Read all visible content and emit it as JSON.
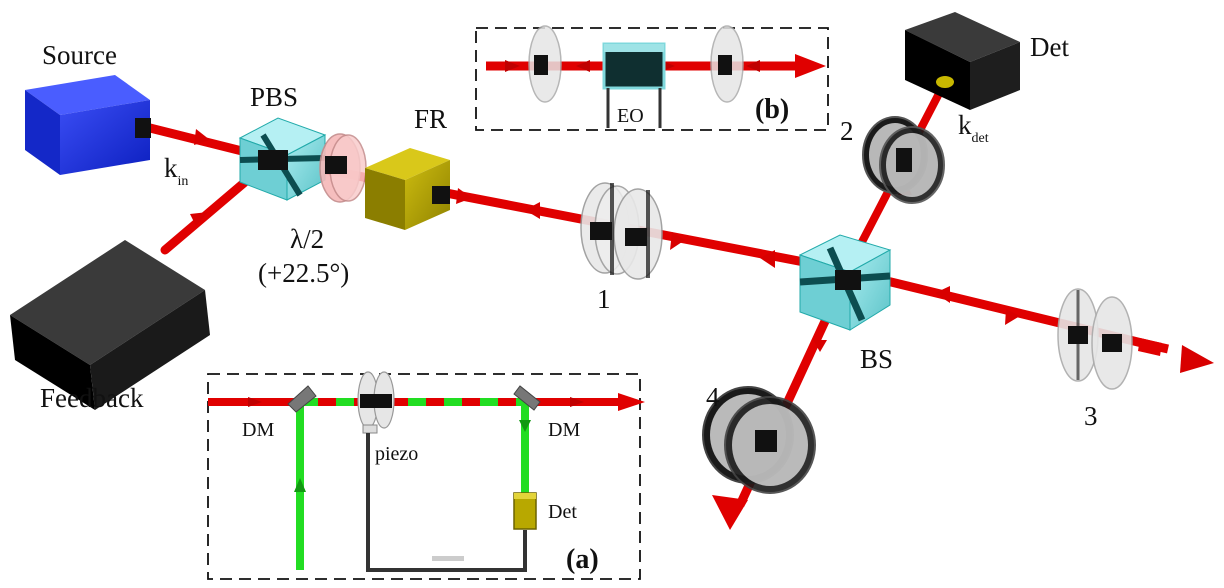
{
  "labels": {
    "source": "Source",
    "feedback": "Feedback",
    "pbs": "PBS",
    "k": "k",
    "k_in_sub": "in",
    "waveplate": "λ/2",
    "waveplate_angle": "(+22.5°)",
    "fr": "FR",
    "port1": "1",
    "port2": "2",
    "port3": "3",
    "port4": "4",
    "bs": "BS",
    "det": "Det",
    "k_det_sub": "det"
  },
  "inset_a": {
    "tag": "(a)",
    "dm_left": "DM",
    "dm_right": "DM",
    "piezo": "piezo",
    "det": "Det"
  },
  "inset_b": {
    "tag": "(b)",
    "eo": "EO"
  },
  "colors": {
    "beam": "#e00000",
    "beam_dark": "#8a0000",
    "green_beam": "#22dd22",
    "source": "#1f35e6",
    "cube": "#7fd8dc",
    "faraday": "#b8a800",
    "waveplate": "#f6b8b8",
    "lens": "#e4e4e4",
    "block": "#111111"
  }
}
